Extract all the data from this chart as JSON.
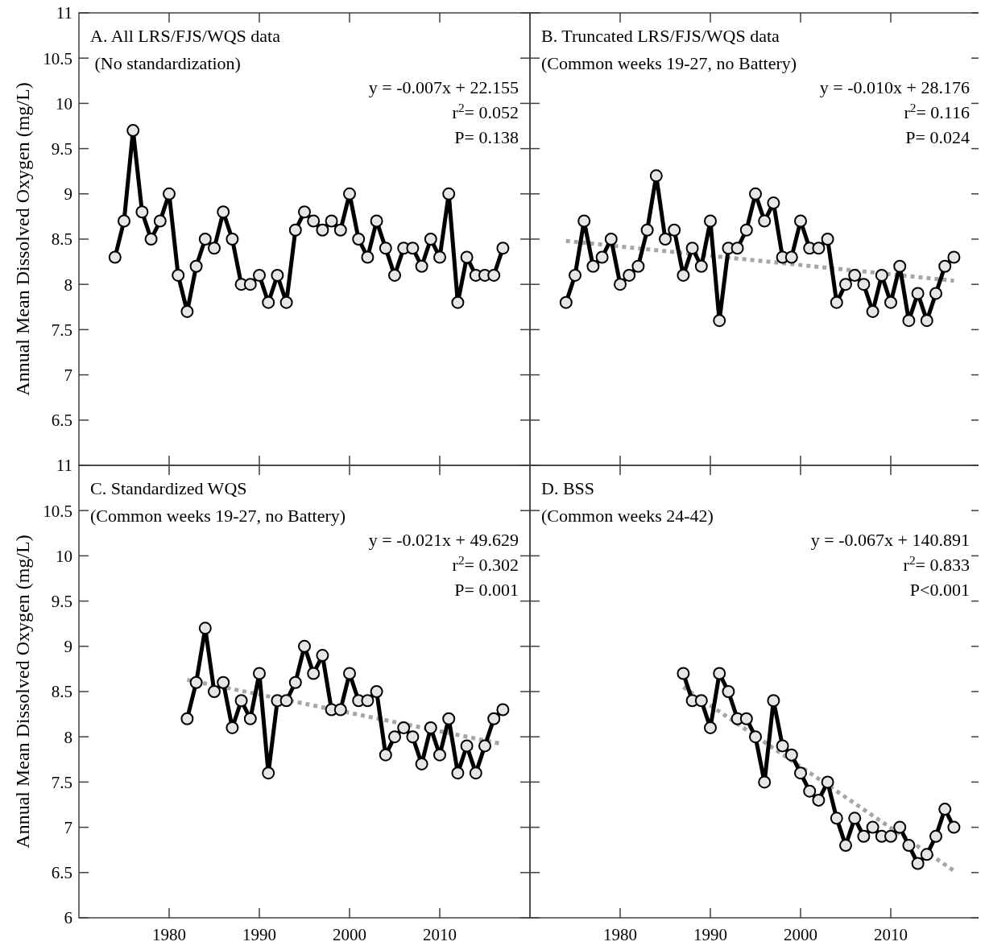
{
  "chart_data": [
    {
      "type": "line",
      "title": "A. All LRS/FJS/WQS data",
      "subtitle": " (No standardization)",
      "ylabel": "Annual Mean Dissolved Oxygen (mg/L)",
      "annotations": [
        "y = -0.007x + 22.155",
        "r$^{2}$= 0.052",
        "P= 0.138"
      ],
      "xlim": [
        1970,
        2020
      ],
      "ylim": [
        6,
        11
      ],
      "xticks": [
        1980,
        1990,
        2000,
        2010
      ],
      "yticks": [
        {
          "value": 6,
          "label": null
        },
        6.5,
        7,
        7.5,
        8,
        8.5,
        9,
        9.5,
        10,
        10.5,
        11
      ],
      "tick_labels": "y",
      "marker": "circle",
      "series": [
        {
          "type": "line",
          "color": "#000000",
          "x": [
            1974,
            1975,
            1976,
            1977,
            1978,
            1979,
            1980,
            1981,
            1982,
            1983,
            1984,
            1985,
            1986,
            1987,
            1988,
            1989,
            1990,
            1991,
            1992,
            1993,
            1994,
            1995,
            1996,
            1997,
            1998,
            1999,
            2000,
            2001,
            2002,
            2003,
            2004,
            2005,
            2006,
            2007,
            2008,
            2009,
            2010,
            2011,
            2012,
            2013,
            2014,
            2015,
            2016,
            2017
          ],
          "values": [
            8.3,
            8.7,
            9.7,
            8.8,
            8.5,
            8.7,
            9.0,
            8.1,
            7.7,
            8.2,
            8.5,
            8.4,
            8.8,
            8.5,
            8.0,
            8.0,
            8.1,
            7.8,
            8.1,
            7.8,
            8.6,
            8.8,
            8.7,
            8.6,
            8.7,
            8.6,
            9.0,
            8.5,
            8.3,
            8.7,
            8.4,
            8.1,
            8.4,
            8.4,
            8.2,
            8.5,
            8.3,
            9.0,
            7.8,
            8.3,
            8.1,
            8.1,
            8.1,
            8.4
          ]
        }
      ]
    },
    {
      "type": "line",
      "title": "B. Truncated LRS/FJS/WQS data",
      "subtitle": "(Common weeks 19-27, no Battery)",
      "annotations": [
        "y = -0.010x + 28.176",
        "r$^{2}$= 0.116",
        "P= 0.024"
      ],
      "xlim": [
        1970,
        2020
      ],
      "ylim": [
        6,
        11
      ],
      "xticks": [
        1980,
        1990,
        2000,
        2010
      ],
      "yticks": [
        6,
        6.5,
        7,
        7.5,
        8,
        8.5,
        9,
        9.5,
        10,
        10.5,
        11
      ],
      "tick_labels": false,
      "marker": "circle",
      "series": [
        {
          "type": "line",
          "color": "#000000",
          "x": [
            1974,
            1975,
            1976,
            1977,
            1978,
            1979,
            1980,
            1981,
            1982,
            1983,
            1984,
            1985,
            1986,
            1987,
            1988,
            1989,
            1990,
            1991,
            1992,
            1993,
            1994,
            1995,
            1996,
            1997,
            1998,
            1999,
            2000,
            2001,
            2002,
            2003,
            2004,
            2005,
            2006,
            2007,
            2008,
            2009,
            2010,
            2011,
            2012,
            2013,
            2014,
            2015,
            2016,
            2017
          ],
          "values": [
            7.8,
            8.1,
            8.7,
            8.2,
            8.3,
            8.5,
            8.0,
            8.1,
            8.2,
            8.6,
            9.2,
            8.5,
            8.6,
            8.1,
            8.4,
            8.2,
            8.7,
            7.6,
            8.4,
            8.4,
            8.6,
            9.0,
            8.7,
            8.9,
            8.3,
            8.3,
            8.7,
            8.4,
            8.4,
            8.5,
            7.8,
            8.0,
            8.1,
            8.0,
            7.7,
            8.1,
            7.8,
            8.2,
            7.6,
            7.9,
            7.6,
            7.9,
            8.2,
            8.3
          ]
        },
        {
          "type": "line",
          "color": "#a6a6a6",
          "line_style": "dotted",
          "marker": "none",
          "x": [
            1974,
            2017
          ],
          "values": [
            8.48,
            8.04
          ]
        }
      ]
    },
    {
      "type": "line",
      "title": "C. Standardized WQS",
      "subtitle": "(Common weeks 19-27, no Battery)",
      "ylabel": "Annual Mean Dissolved Oxygen (mg/L)",
      "annotations": [
        "y = -0.021x + 49.629",
        "r$^{2}$= 0.302",
        "P= 0.001"
      ],
      "xlim": [
        1970,
        2020
      ],
      "ylim": [
        6,
        11
      ],
      "xticks": [
        1980,
        1990,
        2000,
        2010
      ],
      "yticks": [
        6,
        6.5,
        7,
        7.5,
        8,
        8.5,
        9,
        9.5,
        10,
        10.5,
        11
      ],
      "marker": "circle",
      "series": [
        {
          "type": "line",
          "color": "#000000",
          "x": [
            1982,
            1983,
            1984,
            1985,
            1986,
            1987,
            1988,
            1989,
            1990,
            1991,
            1992,
            1993,
            1994,
            1995,
            1996,
            1997,
            1998,
            1999,
            2000,
            2001,
            2002,
            2003,
            2004,
            2005,
            2006,
            2007,
            2008,
            2009,
            2010,
            2011,
            2012,
            2013,
            2014,
            2015,
            2016,
            2017
          ],
          "values": [
            8.2,
            8.6,
            9.2,
            8.5,
            8.6,
            8.1,
            8.4,
            8.2,
            8.7,
            7.6,
            8.4,
            8.4,
            8.6,
            9.0,
            8.7,
            8.9,
            8.3,
            8.3,
            8.7,
            8.4,
            8.4,
            8.5,
            7.8,
            8.0,
            8.1,
            8.0,
            7.7,
            8.1,
            7.8,
            8.2,
            7.6,
            7.9,
            7.6,
            7.9,
            8.2,
            8.3
          ]
        },
        {
          "type": "line",
          "color": "#a6a6a6",
          "line_style": "dotted",
          "marker": "none",
          "x": [
            1982,
            2017
          ],
          "values": [
            8.63,
            7.92
          ]
        }
      ]
    },
    {
      "type": "line",
      "title": "D. BSS",
      "subtitle": "(Common weeks 24-42)",
      "annotations": [
        "y = -0.067x + 140.891",
        "r$^{2}$= 0.833",
        "P<0.001"
      ],
      "xlim": [
        1970,
        2020
      ],
      "ylim": [
        6,
        11
      ],
      "xticks": [
        1980,
        1990,
        2000,
        2010
      ],
      "yticks": [
        6,
        6.5,
        7,
        7.5,
        8,
        8.5,
        9,
        9.5,
        10,
        10.5,
        11
      ],
      "tick_labels": "x",
      "marker": "circle",
      "series": [
        {
          "type": "line",
          "color": "#000000",
          "x": [
            1987,
            1988,
            1989,
            1990,
            1991,
            1992,
            1993,
            1994,
            1995,
            1996,
            1997,
            1998,
            1999,
            2000,
            2001,
            2002,
            2003,
            2004,
            2005,
            2006,
            2007,
            2008,
            2009,
            2010,
            2011,
            2012,
            2013,
            2014,
            2015,
            2016,
            2017
          ],
          "values": [
            8.7,
            8.4,
            8.4,
            8.1,
            8.7,
            8.5,
            8.2,
            8.2,
            8.0,
            7.5,
            8.4,
            7.9,
            7.8,
            7.6,
            7.4,
            7.3,
            7.5,
            7.1,
            6.8,
            7.1,
            6.9,
            7.0,
            6.9,
            6.9,
            7.0,
            6.8,
            6.6,
            6.7,
            6.9,
            7.2,
            7.0
          ]
        },
        {
          "type": "line",
          "color": "#a6a6a6",
          "line_style": "dotted",
          "marker": "none",
          "x": [
            1987,
            2017
          ],
          "values": [
            8.55,
            6.52
          ]
        }
      ]
    }
  ]
}
